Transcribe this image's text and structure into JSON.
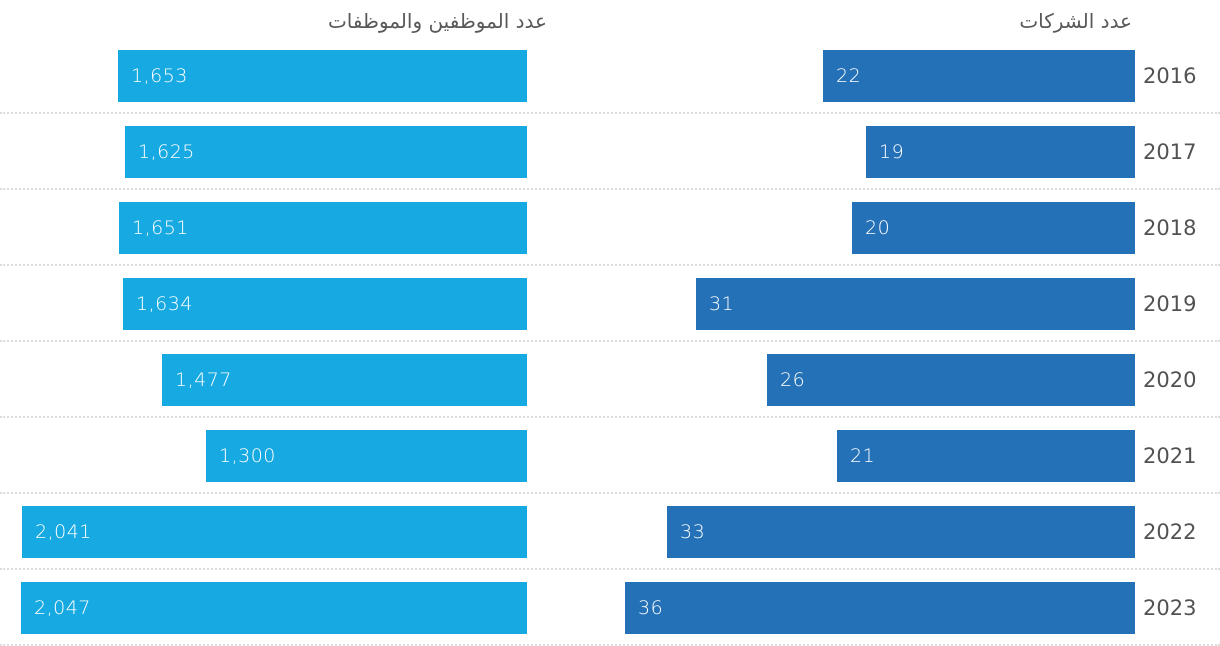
{
  "chart_data": {
    "type": "bar",
    "orientation": "horizontal",
    "rtl": true,
    "categories": [
      "2016",
      "2017",
      "2018",
      "2019",
      "2020",
      "2021",
      "2022",
      "2023"
    ],
    "series": [
      {
        "name": "عدد الموظفين والموظفات",
        "panel": "left",
        "color": "#17A9E2",
        "values": [
          1653,
          1625,
          1651,
          1634,
          1477,
          1300,
          2041,
          2047
        ],
        "labels": [
          "1,653",
          "1,625",
          "1,651",
          "1,634",
          "1,477",
          "1,300",
          "2,041",
          "2,047"
        ],
        "axis_max": 2047
      },
      {
        "name": "عدد الشركات",
        "panel": "right",
        "color": "#2471B8",
        "values": [
          22,
          19,
          20,
          31,
          26,
          21,
          33,
          36
        ],
        "labels": [
          "22",
          "19",
          "20",
          "31",
          "26",
          "21",
          "33",
          "36"
        ],
        "axis_max": 36
      }
    ],
    "value_labels": "inside-start",
    "grid": "dotted-row-separators",
    "legend_position": "top-as-panel-headers"
  },
  "headers": {
    "employees": "عدد الموظفين والموظفات",
    "companies": "عدد الشركات"
  },
  "colors": {
    "employees_bar": "#17A9E2",
    "companies_bar": "#2471B8",
    "bar_value_text": "#FFFFFF",
    "header_text": "#58595B",
    "year_text": "#515254",
    "separator": "#DCDCDC",
    "background": "#FFFFFF"
  }
}
